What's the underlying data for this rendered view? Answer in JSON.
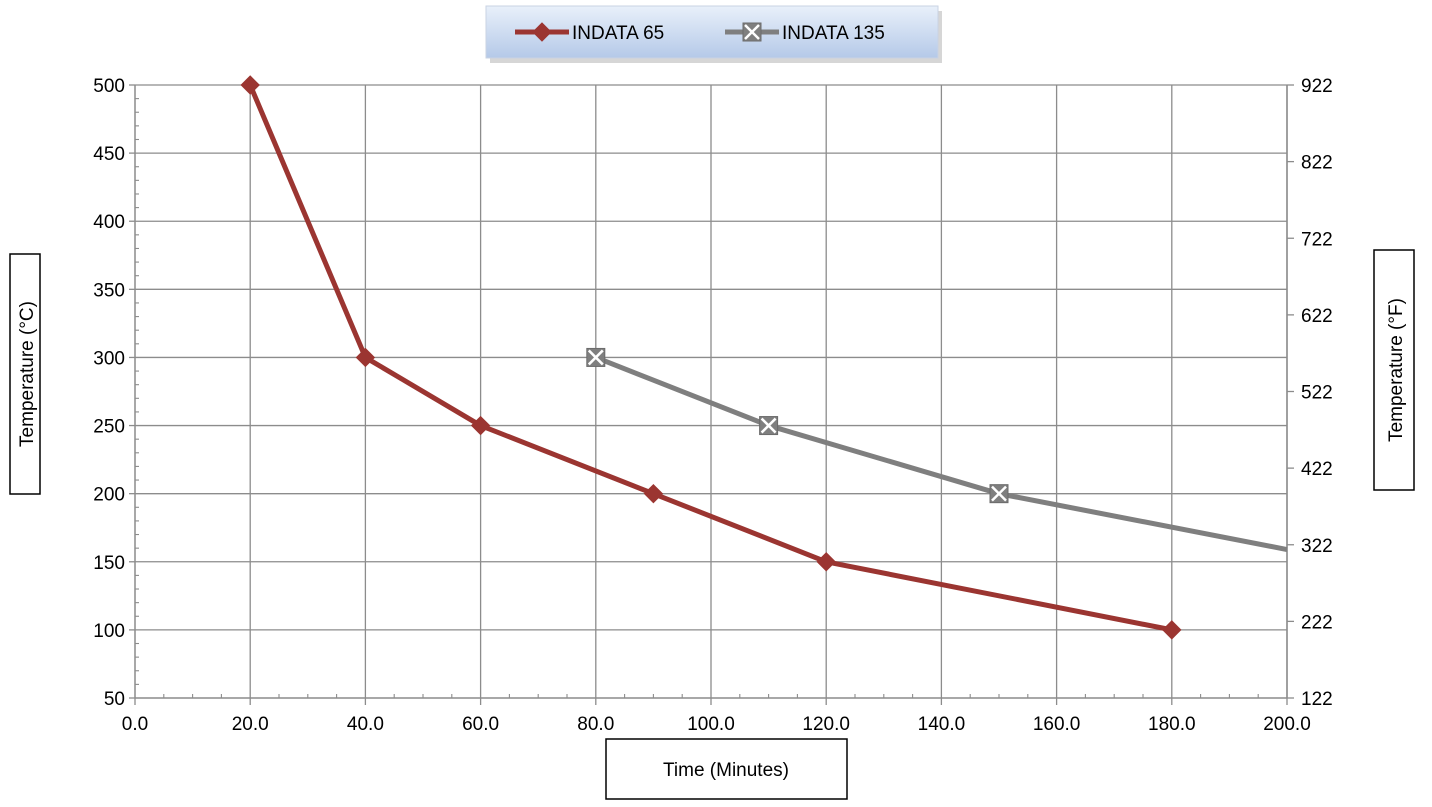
{
  "chart_data": {
    "type": "line",
    "title": "",
    "xlabel": "Time (Minutes)",
    "ylabel": "Temperature (°C)",
    "ylabel_right": "Temperature (°F)",
    "xlim": [
      0,
      200
    ],
    "ylim": [
      50,
      500
    ],
    "ylim_right": [
      122,
      922
    ],
    "x_ticks": [
      "0.0",
      "20.0",
      "40.0",
      "60.0",
      "80.0",
      "100.0",
      "120.0",
      "140.0",
      "160.0",
      "180.0",
      "200.0"
    ],
    "y_ticks": [
      "50",
      "100",
      "150",
      "200",
      "250",
      "300",
      "350",
      "400",
      "450",
      "500"
    ],
    "y_ticks_right": [
      "122",
      "222",
      "322",
      "422",
      "522",
      "622",
      "722",
      "822",
      "922"
    ],
    "grid": true,
    "legend_position": "top-center",
    "series": [
      {
        "name": "INDATA 65",
        "color": "#9b3531",
        "marker": "diamond",
        "x": [
          20,
          40,
          60,
          90,
          120,
          180
        ],
        "y": [
          500,
          300,
          250,
          200,
          150,
          100
        ]
      },
      {
        "name": "INDATA 135",
        "color": "#7f7f7f",
        "marker": "x-box",
        "x": [
          80,
          110,
          150,
          200
        ],
        "y": [
          300,
          250,
          200,
          159
        ],
        "marker_points": [
          true,
          true,
          true,
          false
        ]
      }
    ]
  }
}
